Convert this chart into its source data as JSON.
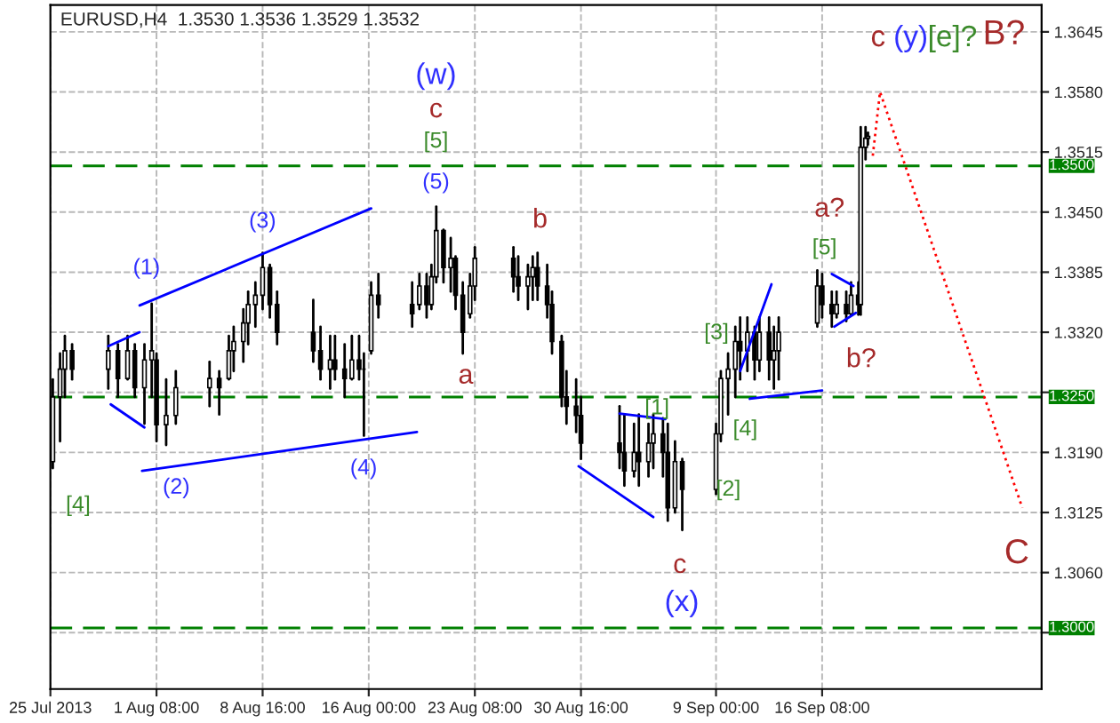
{
  "chart_data": {
    "type": "candlestick",
    "title": "EURUSD,H4  1.3530 1.3536 1.3529 1.3532",
    "x": [
      "2013-07-25T04:00",
      "2013-07-25T16:00",
      "2013-07-26T00:00",
      "2013-07-26T12:00",
      "2013-07-29T00:00",
      "2013-07-29T16:00",
      "2013-07-30T08:00",
      "2013-07-30T20:00",
      "2013-07-31T12:00",
      "2013-08-01T00:00",
      "2013-08-01T08:00",
      "2013-08-02T00:00",
      "2013-08-02T16:00",
      "2013-08-05T00:00",
      "2013-08-05T16:00",
      "2013-08-06T08:00",
      "2013-08-06T16:00",
      "2013-08-07T08:00",
      "2013-08-07T16:00",
      "2013-08-08T04:00",
      "2013-08-08T16:00",
      "2013-08-09T04:00",
      "2013-08-09T16:00",
      "2013-08-12T04:00",
      "2013-08-12T16:00",
      "2013-08-13T08:00",
      "2013-08-13T16:00",
      "2013-08-14T08:00",
      "2013-08-14T20:00",
      "2013-08-15T08:00",
      "2013-08-15T16:00",
      "2013-08-16T04:00",
      "2013-08-16T16:00",
      "2013-08-19T00:00",
      "2013-08-19T12:00",
      "2013-08-20T00:00",
      "2013-08-20T08:00",
      "2013-08-20T16:00",
      "2013-08-21T04:00",
      "2013-08-21T16:00",
      "2013-08-22T00:00",
      "2013-08-22T12:00",
      "2013-08-23T00:00",
      "2013-08-23T08:00",
      "2013-08-26T00:00",
      "2013-08-26T08:00",
      "2013-08-27T00:00",
      "2013-08-27T08:00",
      "2013-08-27T16:00",
      "2013-08-28T08:00",
      "2013-08-28T16:00",
      "2013-08-29T08:00",
      "2013-08-29T16:00",
      "2013-08-30T08:00",
      "2013-08-30T16:00",
      "2013-09-02T08:00",
      "2013-09-02T16:00",
      "2013-09-03T08:00",
      "2013-09-03T16:00",
      "2013-09-04T08:00",
      "2013-09-04T16:00",
      "2013-09-05T08:00",
      "2013-09-05T16:00",
      "2013-09-06T04:00",
      "2013-09-06T16:00",
      "2013-09-09T00:00",
      "2013-09-09T08:00",
      "2013-09-09T20:00",
      "2013-09-10T08:00",
      "2013-09-10T16:00",
      "2013-09-11T04:00",
      "2013-09-11T16:00",
      "2013-09-12T00:00",
      "2013-09-12T16:00",
      "2013-09-13T00:00",
      "2013-09-13T08:00",
      "2013-09-16T00:00",
      "2013-09-16T08:00",
      "2013-09-17T00:00",
      "2013-09-17T08:00",
      "2013-09-18T00:00",
      "2013-09-18T08:00",
      "2013-09-18T20:00",
      "2013-09-19T00:00",
      "2013-09-19T08:00",
      "2013-09-19T12:00"
    ],
    "ohlc": [
      [
        1.318,
        1.3269,
        1.3173,
        1.325
      ],
      [
        1.325,
        1.3297,
        1.3202,
        1.328
      ],
      [
        1.328,
        1.3316,
        1.325,
        1.33
      ],
      [
        1.33,
        1.3307,
        1.3269,
        1.328
      ],
      [
        1.328,
        1.3316,
        1.3259,
        1.33
      ],
      [
        1.33,
        1.3307,
        1.325,
        1.327
      ],
      [
        1.327,
        1.3316,
        1.3269,
        1.33
      ],
      [
        1.33,
        1.3307,
        1.325,
        1.326
      ],
      [
        1.326,
        1.3307,
        1.3221,
        1.329
      ],
      [
        1.329,
        1.3351,
        1.325,
        1.33
      ],
      [
        1.329,
        1.3297,
        1.3202,
        1.322
      ],
      [
        1.322,
        1.3269,
        1.3198,
        1.323
      ],
      [
        1.323,
        1.3278,
        1.3221,
        1.326
      ],
      [
        1.326,
        1.3288,
        1.324,
        1.327
      ],
      [
        1.327,
        1.3278,
        1.3231,
        1.326
      ],
      [
        1.327,
        1.3316,
        1.3269,
        1.33
      ],
      [
        1.33,
        1.3326,
        1.3278,
        1.331
      ],
      [
        1.331,
        1.3345,
        1.3288,
        1.333
      ],
      [
        1.333,
        1.3364,
        1.3307,
        1.335
      ],
      [
        1.335,
        1.3374,
        1.3326,
        1.336
      ],
      [
        1.336,
        1.3406,
        1.3345,
        1.339
      ],
      [
        1.339,
        1.3393,
        1.3336,
        1.335
      ],
      [
        1.335,
        1.3364,
        1.3307,
        1.332
      ],
      [
        1.332,
        1.3355,
        1.3288,
        1.33
      ],
      [
        1.33,
        1.3326,
        1.3269,
        1.328
      ],
      [
        1.328,
        1.3316,
        1.3259,
        1.329
      ],
      [
        1.329,
        1.3316,
        1.3269,
        1.328
      ],
      [
        1.328,
        1.3307,
        1.325,
        1.327
      ],
      [
        1.327,
        1.3316,
        1.3269,
        1.329
      ],
      [
        1.329,
        1.3316,
        1.3269,
        1.328
      ],
      [
        1.328,
        1.3297,
        1.3208,
        1.328
      ],
      [
        1.33,
        1.3374,
        1.3297,
        1.336
      ],
      [
        1.336,
        1.3383,
        1.3336,
        1.335
      ],
      [
        1.335,
        1.3374,
        1.3326,
        1.334
      ],
      [
        1.335,
        1.3383,
        1.3345,
        1.337
      ],
      [
        1.337,
        1.3383,
        1.3336,
        1.335
      ],
      [
        1.335,
        1.3393,
        1.3345,
        1.338
      ],
      [
        1.338,
        1.3456,
        1.3374,
        1.343
      ],
      [
        1.343,
        1.3431,
        1.3374,
        1.339
      ],
      [
        1.339,
        1.3422,
        1.3364,
        1.34
      ],
      [
        1.34,
        1.3402,
        1.3345,
        1.336
      ],
      [
        1.336,
        1.3374,
        1.3297,
        1.332
      ],
      [
        1.334,
        1.3383,
        1.3336,
        1.337
      ],
      [
        1.337,
        1.3412,
        1.3355,
        1.34
      ],
      [
        1.34,
        1.3412,
        1.3364,
        1.338
      ],
      [
        1.338,
        1.3402,
        1.3355,
        1.337
      ],
      [
        1.337,
        1.3393,
        1.3345,
        1.338
      ],
      [
        1.338,
        1.3402,
        1.3355,
        1.339
      ],
      [
        1.339,
        1.3406,
        1.3355,
        1.337
      ],
      [
        1.337,
        1.3393,
        1.3336,
        1.335
      ],
      [
        1.335,
        1.3364,
        1.3297,
        1.331
      ],
      [
        1.331,
        1.3316,
        1.324,
        1.325
      ],
      [
        1.325,
        1.3278,
        1.3221,
        1.324
      ],
      [
        1.324,
        1.3269,
        1.3212,
        1.323
      ],
      [
        1.323,
        1.325,
        1.3183,
        1.32
      ],
      [
        1.32,
        1.324,
        1.3173,
        1.319
      ],
      [
        1.319,
        1.3231,
        1.3154,
        1.317
      ],
      [
        1.317,
        1.3221,
        1.3164,
        1.319
      ],
      [
        1.319,
        1.3231,
        1.3154,
        1.318
      ],
      [
        1.318,
        1.3221,
        1.3164,
        1.32
      ],
      [
        1.32,
        1.3231,
        1.3173,
        1.321
      ],
      [
        1.321,
        1.3227,
        1.3164,
        1.319
      ],
      [
        1.319,
        1.3221,
        1.3116,
        1.313
      ],
      [
        1.313,
        1.3202,
        1.3125,
        1.318
      ],
      [
        1.318,
        1.3183,
        1.3106,
        1.315
      ],
      [
        1.315,
        1.3221,
        1.3145,
        1.321
      ],
      [
        1.321,
        1.3278,
        1.3202,
        1.327
      ],
      [
        1.327,
        1.3297,
        1.3231,
        1.328
      ],
      [
        1.328,
        1.3326,
        1.325,
        1.331
      ],
      [
        1.331,
        1.3336,
        1.3269,
        1.33
      ],
      [
        1.33,
        1.3336,
        1.3278,
        1.332
      ],
      [
        1.332,
        1.3326,
        1.3269,
        1.329
      ],
      [
        1.329,
        1.3336,
        1.3278,
        1.332
      ],
      [
        1.332,
        1.3336,
        1.3269,
        1.329
      ],
      [
        1.329,
        1.3326,
        1.3259,
        1.33
      ],
      [
        1.33,
        1.3336,
        1.3269,
        1.332
      ],
      [
        1.333,
        1.3387,
        1.3326,
        1.337
      ],
      [
        1.337,
        1.3383,
        1.3336,
        1.335
      ],
      [
        1.335,
        1.3364,
        1.3326,
        1.334
      ],
      [
        1.334,
        1.3364,
        1.3336,
        1.335
      ],
      [
        1.335,
        1.3364,
        1.3332,
        1.334
      ],
      [
        1.334,
        1.3374,
        1.3339,
        1.336
      ],
      [
        1.336,
        1.3374,
        1.3339,
        1.335
      ],
      [
        1.335,
        1.3542,
        1.3339,
        1.352
      ],
      [
        1.352,
        1.3542,
        1.3507,
        1.353
      ],
      [
        1.353,
        1.3536,
        1.3523,
        1.3532
      ]
    ],
    "series": [
      {
        "type": "line",
        "color": "#0000ff",
        "line_style": "solid",
        "x": [
          "2013-07-29T00:00",
          "2013-07-31T04:00"
        ],
        "values": [
          1.3305,
          1.332
        ]
      },
      {
        "type": "line",
        "color": "#0000ff",
        "line_style": "solid",
        "x": [
          "2013-07-29T04:00",
          "2013-07-31T12:00"
        ],
        "values": [
          1.3242,
          1.3217
        ]
      },
      {
        "type": "line",
        "color": "#0000ff",
        "line_style": "solid",
        "x": [
          "2013-07-31T04:00",
          "2013-08-16T04:00"
        ],
        "values": [
          1.3349,
          1.3454
        ]
      },
      {
        "type": "line",
        "color": "#0000ff",
        "line_style": "solid",
        "x": [
          "2013-07-31T08:00",
          "2013-08-19T08:00"
        ],
        "values": [
          1.317,
          1.3212
        ]
      },
      {
        "type": "line",
        "color": "#0000ff",
        "line_style": "solid",
        "x": [
          "2013-09-02T08:00",
          "2013-09-05T12:00"
        ],
        "values": [
          1.3232,
          1.3226
        ]
      },
      {
        "type": "line",
        "color": "#0000ff",
        "line_style": "solid",
        "x": [
          "2013-08-30T12:00",
          "2013-09-04T16:00"
        ],
        "values": [
          1.3175,
          1.312
        ]
      },
      {
        "type": "line",
        "color": "#0000ff",
        "line_style": "solid",
        "x": [
          "2013-09-10T16:00",
          "2013-09-12T20:00"
        ],
        "values": [
          1.3278,
          1.3372
        ]
      },
      {
        "type": "line",
        "color": "#0000ff",
        "line_style": "solid",
        "x": [
          "2013-09-11T08:00",
          "2013-09-16T08:00"
        ],
        "values": [
          1.3248,
          1.3257
        ]
      },
      {
        "type": "line",
        "color": "#0000ff",
        "line_style": "solid",
        "x": [
          "2013-09-17T00:00",
          "2013-09-18T12:00"
        ],
        "values": [
          1.3383,
          1.337
        ]
      },
      {
        "type": "line",
        "color": "#0000ff",
        "line_style": "solid",
        "x": [
          "2013-09-17T04:00",
          "2013-09-18T16:00"
        ],
        "values": [
          1.3326,
          1.3341
        ]
      },
      {
        "type": "line",
        "color": "#ff0000",
        "line_style": "dotted",
        "x": [
          "2013-09-19T20:00",
          "2013-09-20T08:00",
          "2013-09-30T04:00"
        ],
        "values": [
          1.3511,
          1.358,
          1.313
        ]
      }
    ],
    "ref_lines": [
      {
        "axis": "y",
        "value": 1.35,
        "label": "1.3500",
        "color": "#008000",
        "line_style": "dashed"
      },
      {
        "axis": "y",
        "value": 1.325,
        "label": "1.3250",
        "color": "#008000",
        "line_style": "dashed"
      },
      {
        "axis": "y",
        "value": 1.3,
        "label": "1.3000",
        "color": "#008000",
        "line_style": "dashed"
      }
    ],
    "annotations": [
      "(w)",
      "c",
      "[5]",
      "(5)",
      "(3)",
      "(1)",
      "(2)",
      "(4)",
      "[4]",
      "a",
      "b",
      "c",
      "(x)",
      "[1]",
      "[2]",
      "[3]",
      "[4]",
      "[5]",
      "a?",
      "b?",
      "c",
      "(y)",
      "[e]?",
      "B?",
      "C"
    ],
    "xlim": [
      "2013-07-25T00:00",
      "2013-10-01T12:00"
    ],
    "ylim": [
      1.2934,
      1.3674
    ],
    "xticks": [
      {
        "value": "2013-07-25T00:00",
        "label": "25 Jul 2013"
      },
      {
        "value": "2013-08-01T08:00",
        "label": "1 Aug 08:00"
      },
      {
        "value": "2013-08-08T16:00",
        "label": "8 Aug 16:00"
      },
      {
        "value": "2013-08-16T00:00",
        "label": "16 Aug 00:00"
      },
      {
        "value": "2013-08-23T08:00",
        "label": "23 Aug 08:00"
      },
      {
        "value": "2013-08-30T16:00",
        "label": "30 Aug 16:00"
      },
      {
        "value": "2013-09-09T00:00",
        "label": "9 Sep 00:00"
      },
      {
        "value": "2013-09-16T08:00",
        "label": "16 Sep 08:00"
      }
    ],
    "yticks": [
      {
        "value": 1.2995,
        "label": null
      },
      {
        "value": 1.306,
        "label": "1.3060"
      },
      {
        "value": 1.3125,
        "label": "1.3125"
      },
      {
        "value": 1.319,
        "label": "1.3190"
      },
      {
        "value": 1.3255,
        "label": null
      },
      {
        "value": 1.332,
        "label": "1.3320"
      },
      {
        "value": 1.3385,
        "label": "1.3385"
      },
      {
        "value": 1.345,
        "label": "1.3450"
      },
      {
        "value": 1.3515,
        "label": "1.3515"
      },
      {
        "value": 1.358,
        "label": "1.3580"
      },
      {
        "value": 1.3645,
        "label": "1.3645"
      }
    ],
    "grid": true
  }
}
